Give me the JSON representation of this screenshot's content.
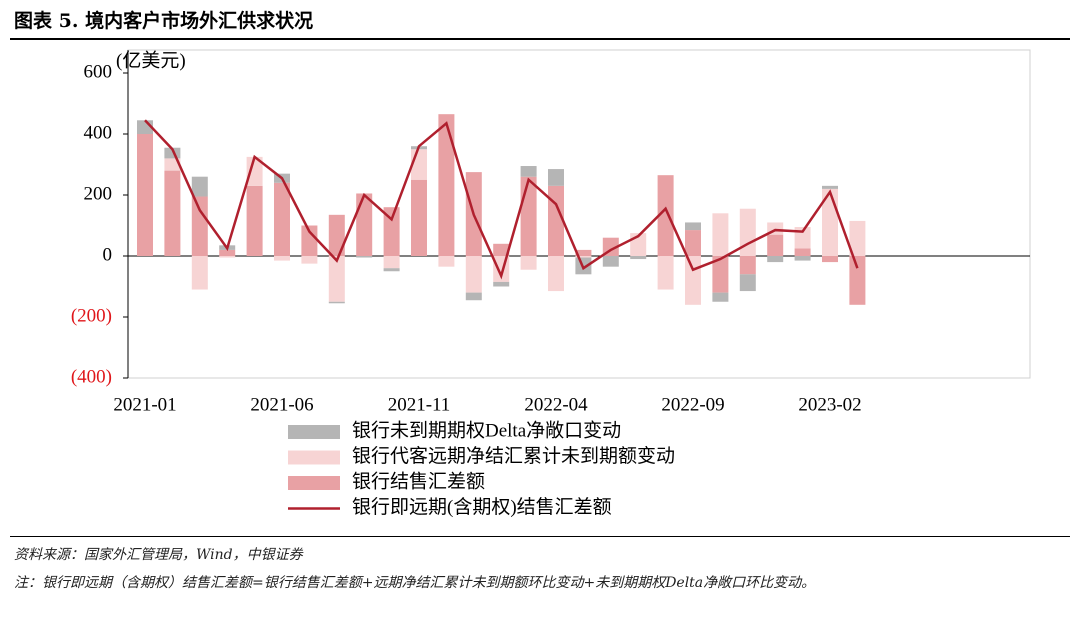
{
  "title": "图表 5. 境内客户市场外汇供求状况",
  "chart_data": {
    "type": "bar",
    "stacked": true,
    "y_label": "(亿美元)",
    "categories": [
      "2021-01",
      null,
      null,
      null,
      null,
      "2021-06",
      null,
      null,
      null,
      null,
      "2021-11",
      null,
      null,
      null,
      null,
      "2022-04",
      null,
      null,
      null,
      null,
      "2022-09",
      null,
      null,
      null,
      null,
      "2023-02",
      null
    ],
    "ylim": [
      -400,
      600
    ],
    "yticks": [
      {
        "value": -400,
        "label": "(400)"
      },
      {
        "value": -200,
        "label": "(200)"
      },
      0,
      200,
      400,
      600
    ],
    "negative_label_color": "#e0161a",
    "series": [
      {
        "name": "银行未到期期权Delta净敞口变动",
        "color": "#b5b5b5",
        "type": "bar",
        "values": [
          45,
          35,
          65,
          15,
          0,
          30,
          0,
          -5,
          -5,
          -10,
          10,
          0,
          -25,
          -15,
          35,
          55,
          -55,
          -35,
          -10,
          0,
          25,
          -30,
          -55,
          -20,
          -15,
          10,
          0
        ]
      },
      {
        "name": "银行代客远期净结汇累计未到期额变动",
        "color": "#f7d4d4",
        "type": "bar",
        "values": [
          0,
          40,
          -110,
          -5,
          95,
          -15,
          -25,
          -150,
          0,
          -40,
          100,
          -35,
          -120,
          -85,
          -45,
          -115,
          -5,
          0,
          75,
          -110,
          -160,
          140,
          155,
          40,
          70,
          220,
          115
        ]
      },
      {
        "name": "银行结售汇差额",
        "color": "#e8a1a4",
        "type": "bar",
        "values": [
          400,
          280,
          195,
          20,
          230,
          240,
          100,
          135,
          205,
          160,
          250,
          465,
          275,
          40,
          260,
          230,
          20,
          60,
          0,
          265,
          85,
          -120,
          -60,
          70,
          25,
          -20,
          -160
        ]
      },
      {
        "name": "银行即远期(含期权)结售汇差额",
        "color": "#b0202e",
        "type": "line",
        "values": [
          445,
          350,
          150,
          25,
          325,
          255,
          80,
          -15,
          200,
          120,
          360,
          435,
          135,
          -65,
          250,
          170,
          -40,
          20,
          65,
          155,
          -45,
          -10,
          40,
          85,
          80,
          210,
          -40
        ]
      }
    ]
  },
  "source": "资料来源：国家外汇管理局，Wind，中银证券",
  "note": "注：银行即远期（含期权）结售汇差额=银行结售汇差额+远期净结汇累计未到期额环比变动+未到期期权Delta净敞口环比变动。"
}
